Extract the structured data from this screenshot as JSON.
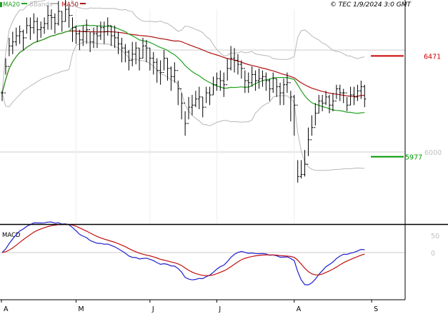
{
  "header": {
    "legend": [
      {
        "label": "MA20",
        "color": "#20a020"
      },
      {
        "label": "BBands",
        "color": "#b8b8b8"
      },
      {
        "label": "MA50",
        "color": "#b01010"
      }
    ],
    "timestamp": "© TEC 1/9/2024 3:0 GMT"
  },
  "colors": {
    "price": "#000000",
    "ma20": "#20a020",
    "ma50": "#b01010",
    "bbands": "#b8b8b8",
    "macd": "#1f1fd0",
    "signal": "#c01010",
    "resistance": "#cc0000",
    "support": "#009900",
    "grid": "#cccccc",
    "border": "#000000"
  },
  "panel_labels": {
    "macd": "MACD"
  },
  "chart_data": [
    {
      "type": "ohlc",
      "ylim": [
        5650,
        6700
      ],
      "y_ticks": [
        {
          "value": 6000,
          "label": "6000"
        }
      ],
      "grid_y": [
        6000,
        6500
      ],
      "x_labels": [
        {
          "index": 0,
          "label": "A"
        },
        {
          "index": 21,
          "label": "M"
        },
        {
          "index": 42,
          "label": "J"
        },
        {
          "index": 61,
          "label": "J"
        },
        {
          "index": 83,
          "label": "A"
        },
        {
          "index": 105,
          "label": "S"
        }
      ],
      "n_bars": 104,
      "close": [
        6290,
        6420,
        6520,
        6540,
        6570,
        6590,
        6560,
        6620,
        6610,
        6640,
        6600,
        6610,
        6630,
        6670,
        6660,
        6630,
        6690,
        6640,
        6700,
        6670,
        6610,
        6580,
        6550,
        6590,
        6600,
        6540,
        6580,
        6570,
        6610,
        6590,
        6620,
        6570,
        6560,
        6530,
        6510,
        6490,
        6450,
        6480,
        6510,
        6460,
        6520,
        6510,
        6460,
        6440,
        6400,
        6390,
        6460,
        6410,
        6370,
        6400,
        6310,
        6240,
        6140,
        6220,
        6230,
        6260,
        6270,
        6220,
        6290,
        6280,
        6330,
        6360,
        6350,
        6330,
        6410,
        6460,
        6450,
        6430,
        6410,
        6350,
        6340,
        6380,
        6350,
        6360,
        6370,
        6350,
        6310,
        6360,
        6320,
        6290,
        6330,
        6340,
        6270,
        6230,
        5880,
        5890,
        5940,
        6060,
        6120,
        6190,
        6250,
        6240,
        6270,
        6230,
        6250,
        6310,
        6290,
        6290,
        6230,
        6280,
        6270,
        6300,
        6320,
        6260
      ],
      "high": [
        6300,
        6460,
        6560,
        6590,
        6610,
        6620,
        6600,
        6660,
        6660,
        6680,
        6660,
        6640,
        6660,
        6720,
        6700,
        6680,
        6740,
        6690,
        6750,
        6720,
        6660,
        6620,
        6600,
        6620,
        6650,
        6590,
        6610,
        6620,
        6640,
        6640,
        6660,
        6620,
        6620,
        6590,
        6560,
        6530,
        6500,
        6540,
        6540,
        6510,
        6560,
        6550,
        6510,
        6490,
        6460,
        6450,
        6500,
        6460,
        6420,
        6440,
        6350,
        6290,
        6200,
        6270,
        6280,
        6300,
        6320,
        6270,
        6320,
        6320,
        6370,
        6390,
        6400,
        6390,
        6460,
        6520,
        6510,
        6480,
        6450,
        6400,
        6390,
        6420,
        6400,
        6410,
        6400,
        6390,
        6360,
        6390,
        6360,
        6340,
        6360,
        6390,
        6300,
        6280,
        5960,
        5960,
        6010,
        6120,
        6180,
        6240,
        6280,
        6280,
        6300,
        6280,
        6290,
        6330,
        6330,
        6310,
        6270,
        6320,
        6320,
        6330,
        6350,
        6330
      ],
      "low": [
        6250,
        6380,
        6470,
        6480,
        6520,
        6530,
        6500,
        6580,
        6550,
        6580,
        6540,
        6560,
        6580,
        6600,
        6600,
        6580,
        6620,
        6590,
        6640,
        6610,
        6540,
        6530,
        6500,
        6520,
        6530,
        6490,
        6510,
        6510,
        6550,
        6530,
        6570,
        6520,
        6510,
        6480,
        6440,
        6440,
        6400,
        6420,
        6430,
        6400,
        6460,
        6440,
        6400,
        6380,
        6340,
        6330,
        6400,
        6350,
        6300,
        6340,
        6230,
        6160,
        6080,
        6160,
        6180,
        6220,
        6210,
        6170,
        6240,
        6230,
        6280,
        6300,
        6300,
        6270,
        6350,
        6400,
        6390,
        6380,
        6360,
        6290,
        6290,
        6320,
        6300,
        6310,
        6320,
        6300,
        6250,
        6290,
        6270,
        6230,
        6230,
        6290,
        6150,
        6080,
        5850,
        5870,
        5880,
        5980,
        6080,
        6130,
        6190,
        6200,
        6230,
        6190,
        6200,
        6260,
        6250,
        6240,
        6200,
        6230,
        6230,
        6250,
        6260,
        6220
      ]
    },
    {
      "type": "line",
      "series": [
        {
          "name": "MACD"
        },
        {
          "name": "Signal"
        }
      ],
      "ylim": [
        -140,
        80
      ],
      "y_ticks": [
        {
          "value": 50,
          "label": "50"
        },
        {
          "value": 0,
          "label": "0"
        }
      ],
      "zero_line": 0
    }
  ]
}
